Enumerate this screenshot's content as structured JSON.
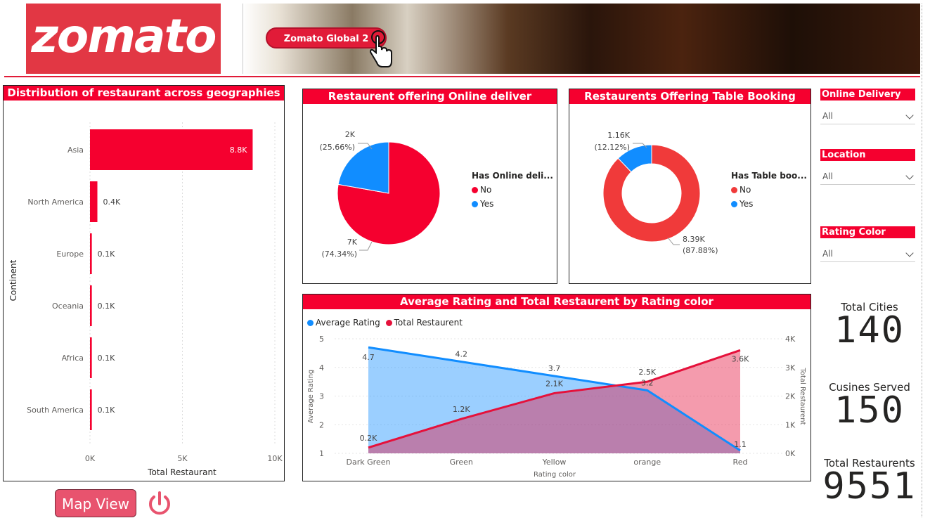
{
  "header": {
    "logo_text": "zomato",
    "nav_button": "Zomato Global 2"
  },
  "geo_chart": {
    "title": "Distribution of restaurant across geographies",
    "ylabel": "Continent",
    "xlabel": "Total Restaurant",
    "ticks": [
      "0K",
      "5K",
      "10K"
    ]
  },
  "online_chart": {
    "title": "Restaurent offering Online deliver",
    "legend_title": "Has Online deli...",
    "legend": [
      "No",
      "Yes"
    ],
    "yes_value": "2K",
    "yes_pct": "(25.66%)",
    "no_value": "7K",
    "no_pct": "(74.34%)"
  },
  "table_chart": {
    "title": "Restaurents Offering Table Booking",
    "legend_title": "Has Table boo...",
    "legend": [
      "No",
      "Yes"
    ],
    "yes_value": "1.16K",
    "yes_pct": "(12.12%)",
    "no_value": "8.39K",
    "no_pct": "(87.88%)"
  },
  "combo_chart": {
    "title": "Average Rating and Total Restaurent by Rating color",
    "legend": [
      "Average Rating",
      "Total Restaurent"
    ],
    "xlabel": "Rating color",
    "ylabel_left": "Average Rating",
    "ylabel_right": "Total Restaurent",
    "left_ticks": [
      "1",
      "2",
      "3",
      "4",
      "5"
    ],
    "right_ticks": [
      "0K",
      "1K",
      "2K",
      "3K",
      "4K"
    ]
  },
  "slicers": [
    {
      "title": "Online Delivery",
      "value": "All"
    },
    {
      "title": "Location",
      "value": "All"
    },
    {
      "title": "Rating Color",
      "value": "All"
    }
  ],
  "kpis": [
    {
      "label": "Total Cities",
      "value": "140"
    },
    {
      "label": "Cusines Served",
      "value": "150"
    },
    {
      "label": "Total Restaurents",
      "value": "9551"
    }
  ],
  "footer": {
    "map_button": "Map View"
  },
  "colors": {
    "accent": "#f5002f",
    "blue": "#118dff",
    "red_pie": "#f5002f",
    "red_donut": "#f03a3a"
  },
  "chart_data": [
    {
      "type": "bar",
      "title": "Distribution of restaurant across geographies",
      "xlabel": "Total Restaurant",
      "ylabel": "Continent",
      "categories": [
        "Asia",
        "North America",
        "Europe",
        "Oceania",
        "Africa",
        "South America"
      ],
      "values": [
        8800,
        400,
        100,
        100,
        100,
        100
      ],
      "data_labels": [
        "8.8K",
        "0.4K",
        "0.1K",
        "0.1K",
        "0.1K",
        "0.1K"
      ],
      "xlim": [
        0,
        10000
      ]
    },
    {
      "type": "pie",
      "title": "Restaurent offering Online deliver",
      "categories": [
        "No",
        "Yes"
      ],
      "values": [
        7000,
        2000
      ],
      "percent": [
        74.34,
        25.66
      ]
    },
    {
      "type": "pie",
      "title": "Restaurents Offering Table Booking",
      "categories": [
        "No",
        "Yes"
      ],
      "values": [
        8390,
        1160
      ],
      "percent": [
        87.88,
        12.12
      ]
    },
    {
      "type": "area",
      "title": "Average Rating and Total Restaurent by Rating color",
      "categories": [
        "Dark Green",
        "Green",
        "Yellow",
        "orange",
        "Red"
      ],
      "series": [
        {
          "name": "Average Rating",
          "values": [
            4.7,
            4.2,
            3.7,
            3.2,
            1.1
          ],
          "labels": [
            "4.7",
            "4.2",
            "3.7",
            "3.2",
            "1.1"
          ],
          "axis": "left"
        },
        {
          "name": "Total Restaurent",
          "values": [
            200,
            1200,
            2100,
            2500,
            3600
          ],
          "labels": [
            "0.2K",
            "1.2K",
            "2.1K",
            "2.5K",
            "3.6K"
          ],
          "axis": "right"
        }
      ],
      "ylim_left": [
        1,
        5
      ],
      "ylim_right": [
        0,
        4000
      ]
    }
  ]
}
